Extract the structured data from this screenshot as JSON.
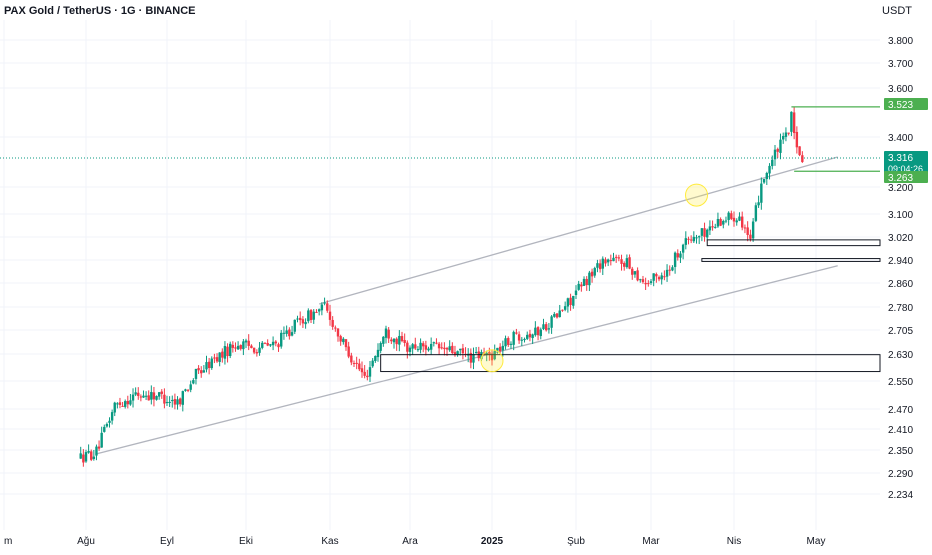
{
  "header": {
    "title": "PAX Gold / TetherUS · 1G · BINANCE",
    "currency": "USDT"
  },
  "chart_data": {
    "type": "candlestick",
    "price_axis": {
      "ticks": [
        "3.800",
        "3.700",
        "3.600",
        "3.400",
        "3.200",
        "3.100",
        "3.020",
        "2.940",
        "2.860",
        "2.780",
        "2.705",
        "2.630",
        "2.550",
        "2.470",
        "2.410",
        "2.350",
        "2.290",
        "2.234"
      ],
      "labels": [
        {
          "text": "3.523",
          "color": "#4caf50"
        },
        {
          "text": "3.316",
          "sub": "09:04:26",
          "color": "#089981"
        },
        {
          "text": "3.263",
          "color": "#4caf50"
        }
      ]
    },
    "time_axis": {
      "ticks": [
        "m",
        "Ağu",
        "Eyl",
        "Eki",
        "Kas",
        "Ara",
        "2025",
        "Şub",
        "Mar",
        "Nis",
        "May"
      ]
    },
    "colors": {
      "up": "#089981",
      "down": "#f23645",
      "grid": "#f0f3fa",
      "channel": "#b2b5be",
      "zone_border": "#131722",
      "hline": "#4caf50",
      "circle": "#ffeb3b"
    },
    "series": [
      {
        "date": "2024-07-30",
        "close": 2330
      },
      {
        "date": "2024-08-05",
        "close": 2345
      },
      {
        "date": "2024-08-12",
        "close": 2480
      },
      {
        "date": "2024-08-20",
        "close": 2510
      },
      {
        "date": "2024-08-28",
        "close": 2510
      },
      {
        "date": "2024-09-05",
        "close": 2490
      },
      {
        "date": "2024-09-12",
        "close": 2570
      },
      {
        "date": "2024-09-20",
        "close": 2620
      },
      {
        "date": "2024-09-27",
        "close": 2660
      },
      {
        "date": "2024-10-05",
        "close": 2650
      },
      {
        "date": "2024-10-12",
        "close": 2660
      },
      {
        "date": "2024-10-20",
        "close": 2730
      },
      {
        "date": "2024-10-30",
        "close": 2780
      },
      {
        "date": "2024-11-06",
        "close": 2660
      },
      {
        "date": "2024-11-14",
        "close": 2560
      },
      {
        "date": "2024-11-22",
        "close": 2700
      },
      {
        "date": "2024-11-30",
        "close": 2650
      },
      {
        "date": "2024-12-08",
        "close": 2655
      },
      {
        "date": "2024-12-16",
        "close": 2640
      },
      {
        "date": "2024-12-24",
        "close": 2620
      },
      {
        "date": "2025-01-01",
        "close": 2630
      },
      {
        "date": "2025-01-10",
        "close": 2690
      },
      {
        "date": "2025-01-18",
        "close": 2700
      },
      {
        "date": "2025-01-26",
        "close": 2760
      },
      {
        "date": "2025-02-03",
        "close": 2850
      },
      {
        "date": "2025-02-11",
        "close": 2940
      },
      {
        "date": "2025-02-19",
        "close": 2935
      },
      {
        "date": "2025-02-27",
        "close": 2860
      },
      {
        "date": "2025-03-07",
        "close": 2900
      },
      {
        "date": "2025-03-13",
        "close": 3000
      },
      {
        "date": "2025-03-20",
        "close": 3030
      },
      {
        "date": "2025-03-27",
        "close": 3080
      },
      {
        "date": "2025-04-03",
        "close": 3100
      },
      {
        "date": "2025-04-07",
        "close": 3000
      },
      {
        "date": "2025-04-11",
        "close": 3220
      },
      {
        "date": "2025-04-17",
        "close": 3350
      },
      {
        "date": "2025-04-20",
        "close": 3400
      },
      {
        "date": "2025-04-22",
        "close": 3480
      },
      {
        "date": "2025-04-24",
        "close": 3340
      },
      {
        "date": "2025-04-26",
        "close": 3316
      }
    ],
    "drawings": {
      "channel_upper": [
        {
          "date": "2024-10-28",
          "price": 2790
        },
        {
          "date": "2025-05-09",
          "price": 3320
        }
      ],
      "channel_lower": [
        {
          "date": "2024-08-05",
          "price": 2340
        },
        {
          "date": "2025-05-09",
          "price": 2920
        }
      ],
      "zones": [
        {
          "from": "2024-11-20",
          "top": 2628,
          "bottom": 2578
        },
        {
          "from": "2025-03-22",
          "top": 3010,
          "bottom": 2990
        },
        {
          "from": "2025-03-20",
          "top": 2945,
          "bottom": 2935
        }
      ],
      "hlines": [
        {
          "from": "2025-04-22",
          "price": 3523
        },
        {
          "from": "2025-04-23",
          "price": 3263
        }
      ],
      "circles": [
        {
          "date": "2025-01-01",
          "price": 2610
        },
        {
          "date": "2025-03-18",
          "price": 3170
        }
      ]
    }
  }
}
